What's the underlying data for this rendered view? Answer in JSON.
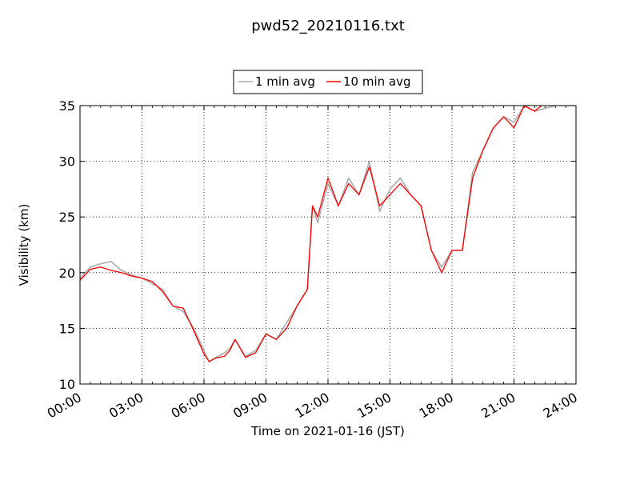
{
  "chart_data": {
    "type": "line",
    "title": "pwd52_20210116.txt",
    "xlabel": "Time on 2021-01-16 (JST)",
    "ylabel": "Visibility (km)",
    "xlim": [
      "00:00",
      "24:00"
    ],
    "ylim": [
      10,
      35
    ],
    "x_ticks": [
      "00:00",
      "03:00",
      "06:00",
      "09:00",
      "12:00",
      "15:00",
      "18:00",
      "21:00",
      "24:00"
    ],
    "y_ticks": [
      "10",
      "15",
      "20",
      "25",
      "30",
      "35"
    ],
    "grid": true,
    "legend_position": "top-center",
    "series": [
      {
        "name": "1 min avg",
        "color": "#aaaaaa",
        "points": [
          [
            "00:00",
            19.5
          ],
          [
            "00:30",
            20.5
          ],
          [
            "01:00",
            20.8
          ],
          [
            "01:30",
            21.0
          ],
          [
            "02:00",
            20.2
          ],
          [
            "02:30",
            19.8
          ],
          [
            "03:00",
            19.5
          ],
          [
            "03:30",
            19.0
          ],
          [
            "04:00",
            18.5
          ],
          [
            "04:30",
            17.0
          ],
          [
            "05:00",
            16.5
          ],
          [
            "05:30",
            15.0
          ],
          [
            "06:00",
            13.0
          ],
          [
            "06:15",
            12.0
          ],
          [
            "06:30",
            12.3
          ],
          [
            "07:00",
            12.8
          ],
          [
            "07:15",
            13.2
          ],
          [
            "07:30",
            14.0
          ],
          [
            "08:00",
            12.5
          ],
          [
            "08:30",
            13.0
          ],
          [
            "09:00",
            14.5
          ],
          [
            "09:30",
            14.0
          ],
          [
            "10:00",
            15.5
          ],
          [
            "10:30",
            17.0
          ],
          [
            "11:00",
            18.5
          ],
          [
            "11:15",
            26.0
          ],
          [
            "11:30",
            24.5
          ],
          [
            "12:00",
            28.0
          ],
          [
            "12:30",
            26.0
          ],
          [
            "13:00",
            28.5
          ],
          [
            "13:30",
            27.0
          ],
          [
            "14:00",
            30.0
          ],
          [
            "14:30",
            25.5
          ],
          [
            "15:00",
            27.5
          ],
          [
            "15:30",
            28.5
          ],
          [
            "16:00",
            27.0
          ],
          [
            "16:30",
            26.0
          ],
          [
            "17:00",
            22.0
          ],
          [
            "17:30",
            20.5
          ],
          [
            "18:00",
            22.0
          ],
          [
            "18:30",
            22.0
          ],
          [
            "19:00",
            29.0
          ],
          [
            "19:30",
            31.0
          ],
          [
            "20:00",
            33.0
          ],
          [
            "20:30",
            34.0
          ],
          [
            "21:00",
            33.5
          ],
          [
            "21:30",
            35.0
          ],
          [
            "22:00",
            34.5
          ],
          [
            "23:00",
            35.0
          ],
          [
            "24:00",
            35.0
          ]
        ]
      },
      {
        "name": "10 min avg",
        "color": "#ff0000",
        "points": [
          [
            "00:00",
            19.3
          ],
          [
            "00:30",
            20.3
          ],
          [
            "01:00",
            20.5
          ],
          [
            "01:30",
            20.2
          ],
          [
            "02:00",
            20.0
          ],
          [
            "02:30",
            19.7
          ],
          [
            "03:00",
            19.5
          ],
          [
            "03:30",
            19.2
          ],
          [
            "04:00",
            18.3
          ],
          [
            "04:30",
            17.0
          ],
          [
            "05:00",
            16.8
          ],
          [
            "05:30",
            14.8
          ],
          [
            "06:00",
            12.7
          ],
          [
            "06:15",
            12.0
          ],
          [
            "06:30",
            12.3
          ],
          [
            "07:00",
            12.5
          ],
          [
            "07:15",
            13.0
          ],
          [
            "07:30",
            14.0
          ],
          [
            "08:00",
            12.4
          ],
          [
            "08:30",
            12.8
          ],
          [
            "09:00",
            14.5
          ],
          [
            "09:30",
            14.0
          ],
          [
            "10:00",
            15.0
          ],
          [
            "10:30",
            17.0
          ],
          [
            "11:00",
            18.5
          ],
          [
            "11:15",
            26.0
          ],
          [
            "11:30",
            25.0
          ],
          [
            "12:00",
            28.5
          ],
          [
            "12:30",
            26.0
          ],
          [
            "13:00",
            28.0
          ],
          [
            "13:30",
            27.0
          ],
          [
            "14:00",
            29.5
          ],
          [
            "14:30",
            26.0
          ],
          [
            "15:00",
            27.0
          ],
          [
            "15:30",
            28.0
          ],
          [
            "16:00",
            27.0
          ],
          [
            "16:30",
            26.0
          ],
          [
            "17:00",
            22.0
          ],
          [
            "17:30",
            20.0
          ],
          [
            "18:00",
            22.0
          ],
          [
            "18:30",
            22.0
          ],
          [
            "19:00",
            28.5
          ],
          [
            "19:30",
            31.0
          ],
          [
            "20:00",
            33.0
          ],
          [
            "20:30",
            34.0
          ],
          [
            "21:00",
            33.0
          ],
          [
            "21:30",
            35.0
          ],
          [
            "22:00",
            34.5
          ],
          [
            "22:20",
            35.0
          ]
        ]
      }
    ]
  }
}
